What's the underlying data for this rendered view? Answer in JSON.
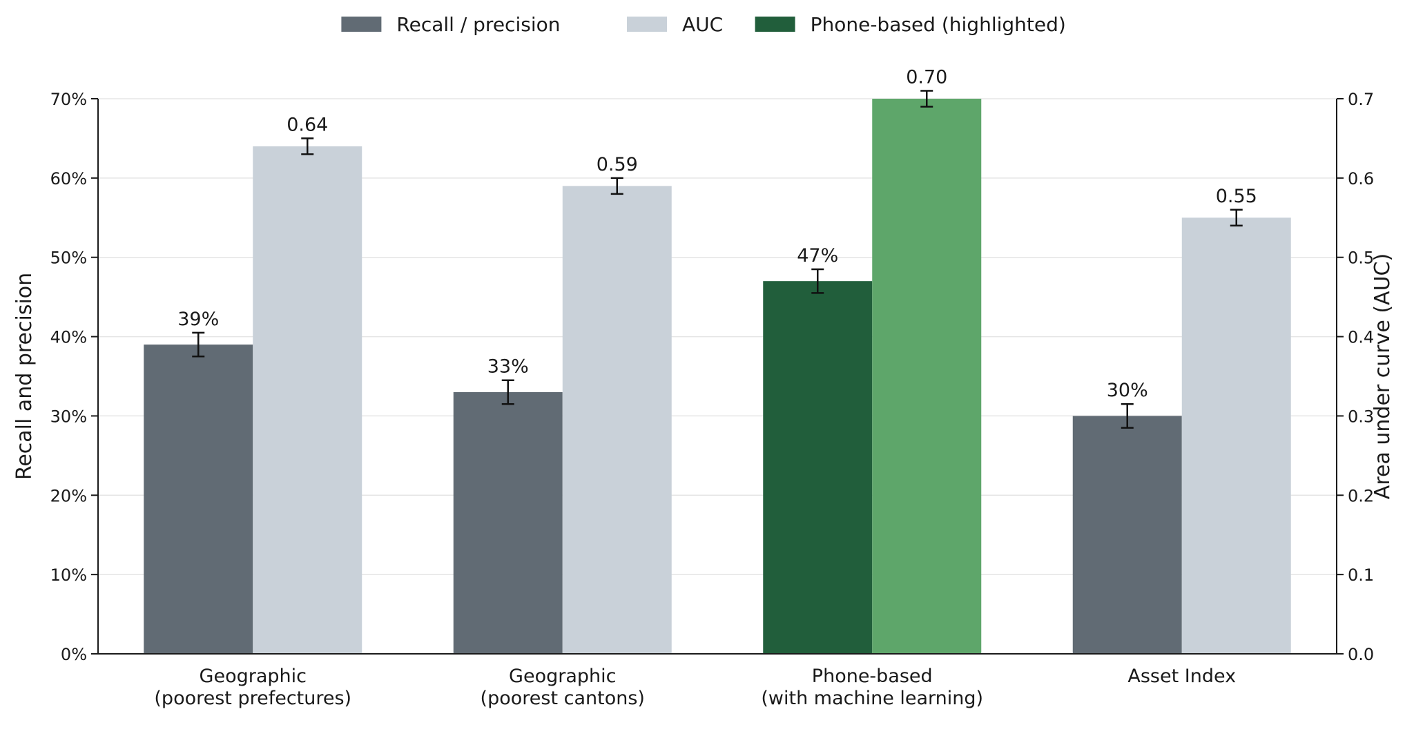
{
  "chart_data": {
    "type": "bar",
    "categories": [
      [
        "Geographic",
        "(poorest prefectures)"
      ],
      [
        "Geographic",
        "(poorest cantons)"
      ],
      [
        "Phone-based",
        "(with machine learning)"
      ],
      [
        "Asset Index",
        ""
      ]
    ],
    "series": [
      {
        "name": "Recall / precision",
        "axis": "left",
        "values": [
          39,
          33,
          47,
          30
        ],
        "errors": [
          1.5,
          1.5,
          1.5,
          1.5
        ],
        "labels": [
          "39%",
          "33%",
          "47%",
          "30%"
        ]
      },
      {
        "name": "AUC",
        "axis": "right",
        "values": [
          0.64,
          0.59,
          0.7,
          0.55
        ],
        "errors": [
          0.01,
          0.01,
          0.01,
          0.01
        ],
        "labels": [
          "0.64",
          "0.59",
          "0.70",
          "0.55"
        ]
      }
    ],
    "highlight_index": 2,
    "legend": [
      {
        "label": "Recall / precision",
        "color": "#616b74"
      },
      {
        "label": "AUC",
        "color": "#c9d1d9"
      },
      {
        "label": "Phone-based (highlighted)",
        "color": "#215e3b"
      }
    ],
    "colors": {
      "recall": "#616b74",
      "auc": "#c9d1d9",
      "highlight_recall": "#215e3b",
      "highlight_auc": "#5ea66a",
      "grid": "#e5e5e5",
      "axis": "#1a1a1a"
    },
    "left_axis": {
      "label": "Recall and precision",
      "ylim": [
        0,
        70
      ],
      "ticks": [
        0,
        10,
        20,
        30,
        40,
        50,
        60,
        70
      ],
      "tick_labels": [
        "0%",
        "10%",
        "20%",
        "30%",
        "40%",
        "50%",
        "60%",
        "70%"
      ]
    },
    "right_axis": {
      "label": "Area under curve (AUC)",
      "ylim": [
        0,
        0.7
      ],
      "ticks": [
        0,
        0.1,
        0.2,
        0.3,
        0.4,
        0.5,
        0.6,
        0.7
      ],
      "tick_labels": [
        "0.0",
        "0.1",
        "0.2",
        "0.3",
        "0.4",
        "0.5",
        "0.6",
        "0.7"
      ]
    },
    "legend_position": "top-center",
    "grid": true
  }
}
